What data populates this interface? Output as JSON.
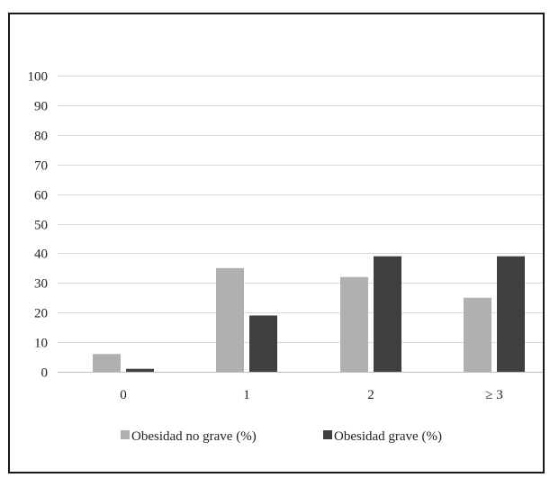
{
  "chart_data": {
    "type": "bar",
    "categories": [
      "0",
      "1",
      "2",
      "≥ 3"
    ],
    "series": [
      {
        "name": "Obesidad no grave (%)",
        "values": [
          6,
          35,
          32,
          25
        ],
        "color": "#b0b0b0"
      },
      {
        "name": "Obesidad grave (%)",
        "values": [
          1,
          19,
          39,
          39
        ],
        "color": "#3f3f3f"
      }
    ],
    "yticks": [
      0,
      10,
      20,
      30,
      40,
      50,
      60,
      70,
      80,
      90,
      100
    ],
    "ylim": [
      0,
      100
    ],
    "grid": true,
    "gridColor": "#d9d9d9",
    "legend": "bottom"
  }
}
